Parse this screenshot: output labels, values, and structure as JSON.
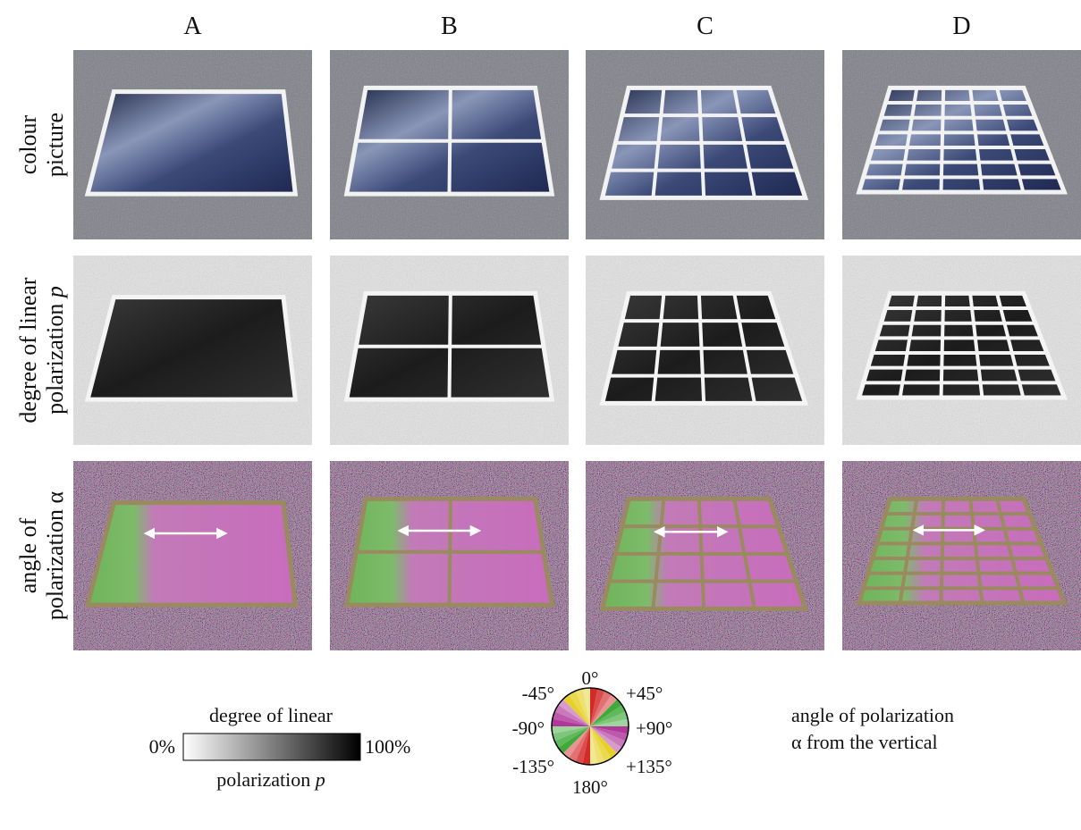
{
  "columns": [
    "A",
    "B",
    "C",
    "D"
  ],
  "rows": [
    {
      "lines": [
        {
          "text": "colour"
        },
        {
          "text": "picture"
        }
      ]
    },
    {
      "lines": [
        {
          "text": "degree of linear"
        },
        {
          "text": "polarization",
          "variable": "p"
        }
      ]
    },
    {
      "lines": [
        {
          "text": "angle of"
        },
        {
          "text": "polarization α"
        }
      ]
    }
  ],
  "p_legend": {
    "top": "degree of linear",
    "min": "0%",
    "max": "100%",
    "bottom": {
      "text": "polarization",
      "variable": "p"
    }
  },
  "angle_legend": {
    "wheel_labels": [
      "0°",
      "+45°",
      "+90°",
      "+135°",
      "180°",
      "-135°",
      "-90°",
      "-45°"
    ],
    "caption": [
      "angle of polarization",
      "α from the vertical"
    ]
  }
}
